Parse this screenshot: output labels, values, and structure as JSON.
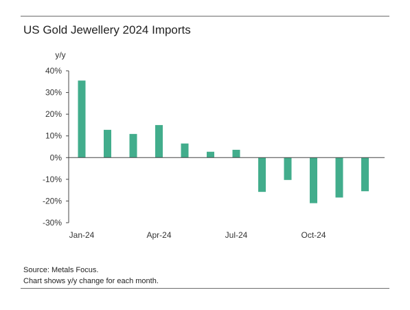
{
  "title": "US Gold Jewellery 2024 Imports",
  "footer": {
    "source": "Source: Metals Focus.",
    "note": "Chart shows y/y change for each month."
  },
  "colors": {
    "bar": "#42ad8c",
    "axis": "#444444",
    "rule": "#6b6b6b"
  },
  "chart_data": {
    "type": "bar",
    "title": "US Gold Jewellery 2024 Imports",
    "ylabel": "y/y",
    "xlabel": "",
    "ylim": [
      -30,
      40
    ],
    "yticks": [
      40,
      30,
      20,
      10,
      0,
      -10,
      -20,
      -30
    ],
    "ytick_labels": [
      "40%",
      "30%",
      "20%",
      "10%",
      "0%",
      "-10%",
      "-20%",
      "-30%"
    ],
    "categories": [
      "Jan-24",
      "Feb-24",
      "Mar-24",
      "Apr-24",
      "May-24",
      "Jun-24",
      "Jul-24",
      "Aug-24",
      "Sep-24",
      "Oct-24",
      "Nov-24",
      "Dec-24"
    ],
    "shown_xtick_labels": [
      "Jan-24",
      "Apr-24",
      "Jul-24",
      "Oct-24"
    ],
    "values": [
      35.5,
      12.8,
      10.9,
      15.0,
      6.5,
      2.7,
      3.6,
      -15.8,
      -10.3,
      -21.0,
      -18.4,
      -15.5
    ],
    "grid": false
  }
}
